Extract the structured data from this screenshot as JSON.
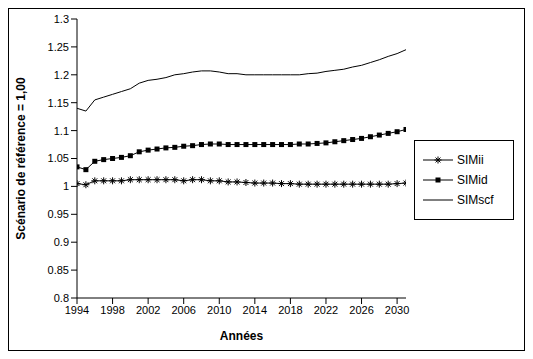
{
  "chart_data": {
    "type": "line",
    "x_label": "Années",
    "y_label": "Scénario de référence = 1,00",
    "x": [
      1994,
      1995,
      1996,
      1997,
      1998,
      1999,
      2000,
      2001,
      2002,
      2003,
      2004,
      2005,
      2006,
      2007,
      2008,
      2009,
      2010,
      2011,
      2012,
      2013,
      2014,
      2015,
      2016,
      2017,
      2018,
      2019,
      2020,
      2021,
      2022,
      2023,
      2024,
      2025,
      2026,
      2027,
      2028,
      2029,
      2030,
      2031
    ],
    "series": [
      {
        "name": "SIMii",
        "color": "#000000",
        "marker": "asterisk",
        "line_style": "solid",
        "values": [
          1.005,
          1.003,
          1.01,
          1.01,
          1.01,
          1.01,
          1.012,
          1.012,
          1.012,
          1.012,
          1.012,
          1.012,
          1.01,
          1.012,
          1.012,
          1.01,
          1.01,
          1.008,
          1.008,
          1.007,
          1.006,
          1.006,
          1.006,
          1.005,
          1.005,
          1.004,
          1.004,
          1.004,
          1.004,
          1.004,
          1.004,
          1.004,
          1.004,
          1.004,
          1.004,
          1.004,
          1.005,
          1.006
        ]
      },
      {
        "name": "SIMid",
        "color": "#000000",
        "marker": "square",
        "line_style": "solid",
        "values": [
          1.035,
          1.03,
          1.045,
          1.048,
          1.05,
          1.052,
          1.055,
          1.062,
          1.065,
          1.067,
          1.069,
          1.07,
          1.072,
          1.073,
          1.075,
          1.076,
          1.076,
          1.075,
          1.075,
          1.075,
          1.075,
          1.075,
          1.075,
          1.075,
          1.075,
          1.076,
          1.076,
          1.077,
          1.078,
          1.08,
          1.082,
          1.084,
          1.086,
          1.089,
          1.092,
          1.095,
          1.098,
          1.102
        ]
      },
      {
        "name": "SIMscf",
        "color": "#000000",
        "marker": "none",
        "line_style": "solid",
        "values": [
          1.14,
          1.135,
          1.155,
          1.16,
          1.165,
          1.17,
          1.175,
          1.185,
          1.19,
          1.192,
          1.195,
          1.2,
          1.202,
          1.205,
          1.207,
          1.207,
          1.205,
          1.202,
          1.202,
          1.2,
          1.2,
          1.2,
          1.2,
          1.2,
          1.2,
          1.2,
          1.202,
          1.203,
          1.206,
          1.208,
          1.21,
          1.214,
          1.217,
          1.222,
          1.227,
          1.233,
          1.238,
          1.245
        ]
      }
    ],
    "xlim": [
      1994,
      2031
    ],
    "xticks": [
      1994,
      1998,
      2002,
      2006,
      2010,
      2014,
      2018,
      2022,
      2026,
      2030
    ],
    "ylim": [
      0.8,
      1.3
    ],
    "yticks": [
      0.8,
      0.85,
      0.9,
      0.95,
      1,
      1.05,
      1.1,
      1.15,
      1.2,
      1.25,
      1.3
    ],
    "grid": false,
    "legend": "right"
  }
}
